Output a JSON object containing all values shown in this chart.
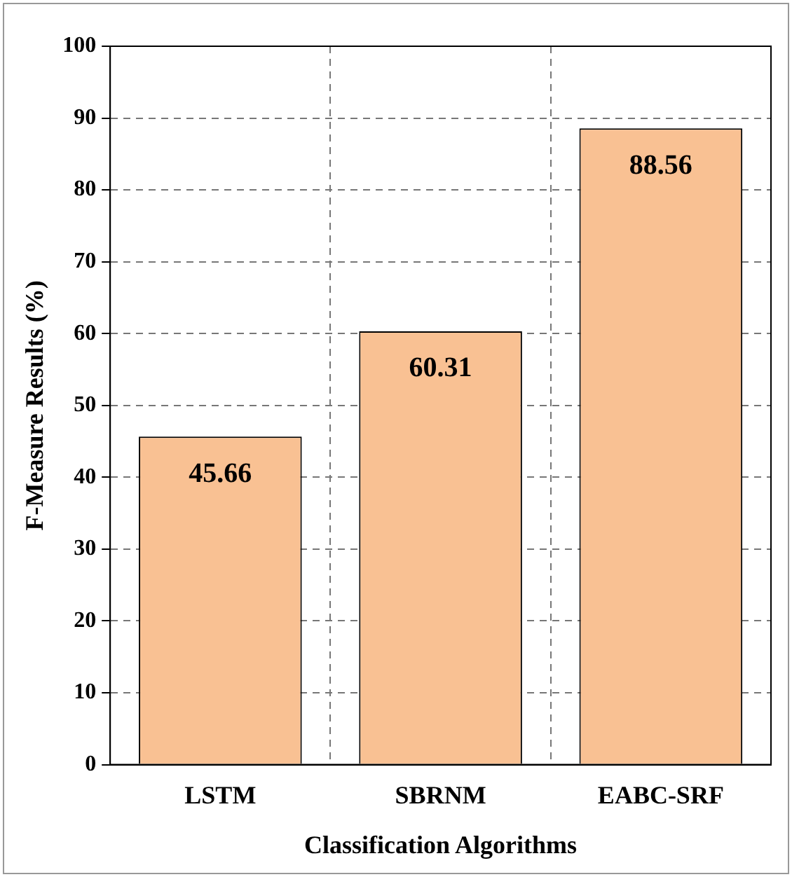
{
  "chart_data": {
    "type": "bar",
    "xlabel": "Classification Algorithms",
    "ylabel": "F-Measure Results (%)",
    "categories": [
      "LSTM",
      "SBRNM",
      "EABC-SRF"
    ],
    "values": [
      45.66,
      60.31,
      88.56
    ],
    "color": "#f9c193",
    "ylim": [
      0,
      100
    ],
    "yticks": [
      0,
      10,
      20,
      30,
      40,
      50,
      60,
      70,
      80,
      90,
      100
    ],
    "grid": true,
    "data_labels": true,
    "legend": false
  }
}
